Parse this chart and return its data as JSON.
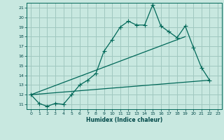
{
  "title": "",
  "xlabel": "Humidex (Indice chaleur)",
  "ylabel": "",
  "bg_color": "#c8e8e0",
  "grid_color": "#a0c8c0",
  "line_color": "#006858",
  "xlim": [
    -0.5,
    23.5
  ],
  "ylim": [
    10.5,
    21.5
  ],
  "yticks": [
    11,
    12,
    13,
    14,
    15,
    16,
    17,
    18,
    19,
    20,
    21
  ],
  "xticks": [
    0,
    1,
    2,
    3,
    4,
    5,
    6,
    7,
    8,
    9,
    10,
    11,
    12,
    13,
    14,
    15,
    16,
    17,
    18,
    19,
    20,
    21,
    22,
    23
  ],
  "series1_x": [
    0,
    1,
    2,
    3,
    4,
    5,
    6,
    7,
    8,
    9,
    10,
    11,
    12,
    13,
    14,
    15,
    16,
    17,
    18,
    19,
    20,
    21,
    22
  ],
  "series1_y": [
    12.0,
    11.1,
    10.8,
    11.1,
    11.0,
    12.0,
    13.0,
    13.5,
    14.2,
    16.5,
    17.7,
    19.0,
    19.6,
    19.2,
    19.2,
    21.3,
    19.1,
    18.5,
    17.9,
    19.1,
    16.9,
    14.8,
    13.5
  ],
  "series2_x": [
    0,
    22
  ],
  "series2_y": [
    12.0,
    13.5
  ],
  "series3_x": [
    0,
    19
  ],
  "series3_y": [
    12.0,
    18.0
  ],
  "marker": "+",
  "marker_size": 4,
  "line_width": 0.9
}
